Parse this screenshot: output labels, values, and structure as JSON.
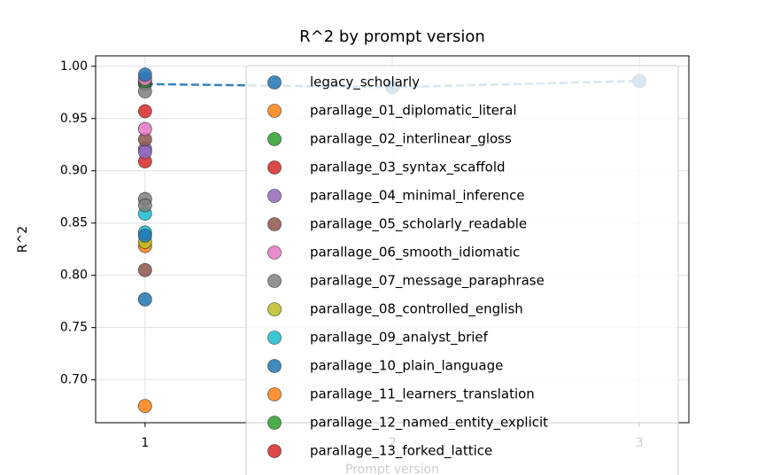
{
  "chart_data": {
    "type": "scatter",
    "title": "R^2 by prompt version",
    "xlabel": "Prompt version",
    "ylabel": "R^2",
    "xlim": [
      0.8,
      3.2
    ],
    "ylim": [
      0.659,
      1.01
    ],
    "xticks": [
      1,
      2,
      3
    ],
    "yticks": [
      {
        "value": 0.7,
        "label": "0.70"
      },
      {
        "value": 0.75,
        "label": "0.75"
      },
      {
        "value": 0.8,
        "label": "0.80"
      },
      {
        "value": 0.85,
        "label": "0.85"
      },
      {
        "value": 0.9,
        "label": "0.90"
      },
      {
        "value": 0.95,
        "label": "0.95"
      },
      {
        "value": 1.0,
        "label": "1.00"
      }
    ],
    "grid": true,
    "legend": "upper right",
    "series": [
      {
        "name": "legacy_scholarly",
        "color": "#1f77b4",
        "x": [
          1,
          2,
          3
        ],
        "values": [
          0.983,
          0.98,
          0.986
        ],
        "line": "dashed"
      },
      {
        "name": "parallage_01_diplomatic_literal",
        "color": "#ff7f0e",
        "x": [
          1
        ],
        "values": [
          0.828
        ]
      },
      {
        "name": "parallage_02_interlinear_gloss",
        "color": "#2ca02c",
        "x": [
          1
        ],
        "values": [
          0.985
        ]
      },
      {
        "name": "parallage_03_syntax_scaffold",
        "color": "#d62728",
        "x": [
          1
        ],
        "values": [
          0.957
        ]
      },
      {
        "name": "parallage_04_minimal_inference",
        "color": "#9467bd",
        "x": [
          1
        ],
        "values": [
          0.921
        ]
      },
      {
        "name": "parallage_05_scholarly_readable",
        "color": "#8c564b",
        "x": [
          1
        ],
        "values": [
          0.93
        ]
      },
      {
        "name": "parallage_06_smooth_idiomatic",
        "color": "#e377c2",
        "x": [
          1
        ],
        "values": [
          0.94
        ]
      },
      {
        "name": "parallage_07_message_paraphrase",
        "color": "#7f7f7f",
        "x": [
          1
        ],
        "values": [
          0.976
        ]
      },
      {
        "name": "parallage_08_controlled_english",
        "color": "#bcbd22",
        "x": [
          1
        ],
        "values": [
          0.832
        ]
      },
      {
        "name": "parallage_09_analyst_brief",
        "color": "#17becf",
        "x": [
          1
        ],
        "values": [
          0.859
        ]
      },
      {
        "name": "parallage_10_plain_language",
        "color": "#1f77b4",
        "x": [
          1
        ],
        "values": [
          0.777
        ]
      },
      {
        "name": "parallage_11_learners_translation",
        "color": "#ff7f0e",
        "x": [
          1
        ],
        "values": [
          0.675
        ]
      },
      {
        "name": "parallage_12_named_entity_explicit",
        "color": "#2ca02c",
        "x": [
          1
        ],
        "values": [
          0.986
        ]
      },
      {
        "name": "parallage_13_forked_lattice",
        "color": "#d62728",
        "x": [
          1
        ],
        "values": [
          0.909
        ]
      },
      {
        "color": "#9467bd",
        "x": [
          1
        ],
        "values": [
          0.918
        ]
      },
      {
        "color": "#8c564b",
        "x": [
          1
        ],
        "values": [
          0.805
        ]
      },
      {
        "color": "#e377c2",
        "x": [
          1
        ],
        "values": [
          0.988
        ]
      },
      {
        "color": "#7f7f7f",
        "x": [
          1,
          1
        ],
        "values": [
          0.873,
          0.867
        ]
      },
      {
        "color": "#17becf",
        "x": [
          1
        ],
        "values": [
          0.841
        ]
      },
      {
        "color": "#1f77b4",
        "x": [
          1,
          1
        ],
        "values": [
          0.992,
          0.838
        ]
      }
    ]
  }
}
